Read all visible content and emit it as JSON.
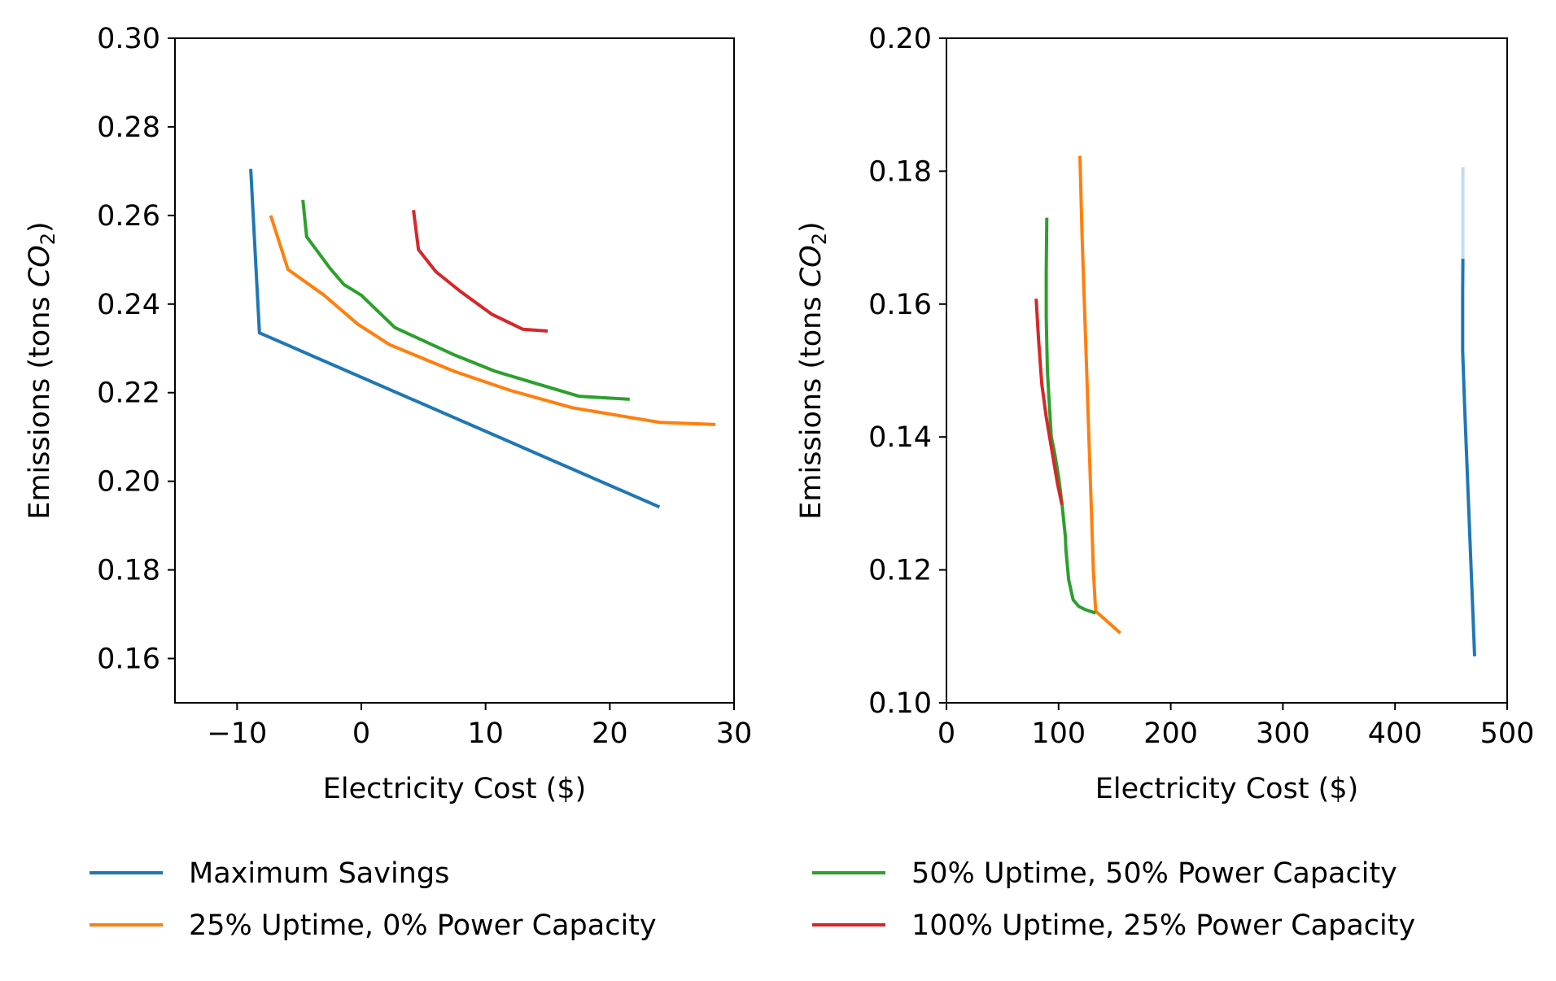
{
  "colors": {
    "maximum_savings": "#1f77b4",
    "uptime25_power0": "#ff7f0e",
    "uptime50_power50": "#2ca02c",
    "uptime100_power25": "#d62728",
    "faint_blue": "#c6dbef"
  },
  "legend": {
    "placement": "bottom",
    "entries": [
      "Maximum Savings",
      "25% Uptime, 0% Power Capacity",
      "50% Uptime, 50% Power Capacity",
      "100% Uptime, 25% Power Capacity"
    ]
  },
  "chart_data": [
    {
      "type": "line",
      "xlabel": "Electricity Cost ($)",
      "ylabel_prefix": "Emissions (tons ",
      "ylabel_var": "CO",
      "ylabel_sub": "2",
      "ylabel_suffix": ")",
      "xlim": [
        -15,
        30
      ],
      "ylim": [
        0.15,
        0.3
      ],
      "xticks": [
        -10,
        0,
        10,
        20,
        30
      ],
      "xtick_labels": [
        "−10",
        "0",
        "10",
        "20",
        "30"
      ],
      "yticks": [
        0.16,
        0.18,
        0.2,
        0.22,
        0.24,
        0.26,
        0.28,
        0.3
      ],
      "ytick_labels": [
        "0.16",
        "0.18",
        "0.20",
        "0.22",
        "0.24",
        "0.26",
        "0.28",
        "0.30"
      ],
      "grid": false,
      "series": [
        {
          "name": "Maximum Savings",
          "color_key": "maximum_savings",
          "x": [
            -8.9,
            -8.2,
            24.0
          ],
          "y": [
            0.2705,
            0.2335,
            0.1942
          ]
        },
        {
          "name": "25% Uptime, 0% Power Capacity",
          "color_key": "uptime25_power0",
          "x": [
            -7.3,
            -5.9,
            -3.0,
            -0.3,
            2.3,
            7.5,
            12.0,
            17.0,
            24.0,
            28.5
          ],
          "y": [
            0.26,
            0.2478,
            0.242,
            0.2355,
            0.2308,
            0.2248,
            0.2205,
            0.2166,
            0.2133,
            0.2128
          ]
        },
        {
          "name": "50% Uptime, 50% Power Capacity",
          "color_key": "uptime50_power50",
          "x": [
            -4.7,
            -4.4,
            -2.5,
            -1.4,
            0.0,
            2.7,
            7.5,
            10.8,
            17.5,
            21.6
          ],
          "y": [
            0.2635,
            0.2552,
            0.248,
            0.2444,
            0.242,
            0.2347,
            0.2285,
            0.2248,
            0.2192,
            0.2185
          ]
        },
        {
          "name": "100% Uptime, 25% Power Capacity",
          "color_key": "uptime100_power25",
          "x": [
            4.2,
            4.6,
            6.0,
            8.0,
            10.5,
            13.0,
            15.0
          ],
          "y": [
            0.2612,
            0.2523,
            0.2473,
            0.2428,
            0.2377,
            0.2343,
            0.2339
          ]
        }
      ]
    },
    {
      "type": "line",
      "xlabel": "Electricity Cost ($)",
      "ylabel_prefix": "Emissions (tons ",
      "ylabel_var": "CO",
      "ylabel_sub": "2",
      "ylabel_suffix": ")",
      "xlim": [
        0,
        500
      ],
      "ylim": [
        0.1,
        0.2
      ],
      "xticks": [
        0,
        100,
        200,
        300,
        400,
        500
      ],
      "xtick_labels": [
        "0",
        "100",
        "200",
        "300",
        "400",
        "500"
      ],
      "yticks": [
        0.1,
        0.12,
        0.14,
        0.16,
        0.18,
        0.2
      ],
      "ytick_labels": [
        "0.10",
        "0.12",
        "0.14",
        "0.16",
        "0.18",
        "0.20"
      ],
      "grid": false,
      "series": [
        {
          "name": "",
          "color_key": "faint_blue",
          "x": [
            460.5,
            460.5
          ],
          "y": [
            0.1806,
            0.1668
          ]
        },
        {
          "name": "Maximum Savings",
          "color_key": "maximum_savings",
          "x": [
            460.5,
            460.3,
            460.3,
            462.0,
            471.0
          ],
          "y": [
            0.1668,
            0.162,
            0.153,
            0.145,
            0.107
          ]
        },
        {
          "name": "25% Uptime, 0% Power Capacity",
          "color_key": "uptime25_power0",
          "x": [
            119.0,
            121.0,
            124.0,
            127.0,
            129.0,
            131.0,
            133.0,
            155.0
          ],
          "y": [
            0.1823,
            0.17,
            0.155,
            0.14,
            0.13,
            0.12,
            0.1138,
            0.1105
          ]
        },
        {
          "name": "50% Uptime, 50% Power Capacity",
          "color_key": "uptime50_power50",
          "x": [
            89.5,
            89.0,
            89.0,
            90.0,
            93.5,
            96.0,
            100.0,
            103.0,
            106.0,
            106.5,
            109.0,
            113.0,
            118.0,
            124.0,
            133.0
          ],
          "y": [
            0.173,
            0.165,
            0.158,
            0.15,
            0.14,
            0.138,
            0.134,
            0.13,
            0.125,
            0.123,
            0.1185,
            0.1155,
            0.1145,
            0.114,
            0.1135
          ]
        },
        {
          "name": "100% Uptime, 25% Power Capacity",
          "color_key": "uptime100_power25",
          "x": [
            80.0,
            82.0,
            85.0,
            89.0,
            94.0,
            99.0,
            103.0
          ],
          "y": [
            0.1608,
            0.155,
            0.148,
            0.143,
            0.138,
            0.133,
            0.1298
          ]
        }
      ]
    }
  ]
}
